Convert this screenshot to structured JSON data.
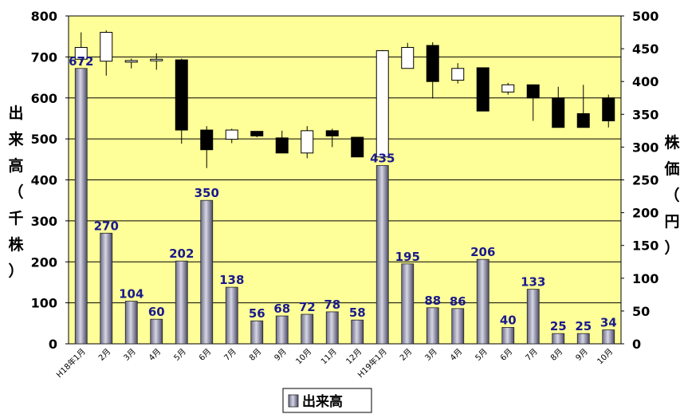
{
  "chart_data": {
    "type": "bar",
    "categories": [
      "H18年1月",
      "2月",
      "3月",
      "4月",
      "5月",
      "6月",
      "7月",
      "8月",
      "9月",
      "10月",
      "11月",
      "12月",
      "H19年1月",
      "2月",
      "3月",
      "4月",
      "5月",
      "6月",
      "7月",
      "8月",
      "9月",
      "10月"
    ],
    "series": [
      {
        "name": "出来高",
        "axis": "left",
        "type": "bar",
        "values": [
          672,
          270,
          104,
          60,
          202,
          350,
          138,
          56,
          68,
          72,
          78,
          58,
          435,
          195,
          88,
          86,
          206,
          40,
          133,
          25,
          25,
          34
        ],
        "data_labels": [
          "672",
          "270",
          "104",
          "60",
          "202",
          "350",
          "138",
          "56",
          "68",
          "72",
          "78",
          "58",
          "435",
          "195",
          "88",
          "86",
          "206",
          "40",
          "133",
          "25",
          "25",
          "34"
        ]
      },
      {
        "axis": "right",
        "type": "candlestick",
        "ohlc": [
          {
            "open": 434,
            "high": 475,
            "low": 424,
            "close": 452
          },
          {
            "open": 431,
            "high": 478,
            "low": 409,
            "close": 475
          },
          {
            "open": 430,
            "high": 435,
            "low": 420,
            "close": 432
          },
          {
            "open": 434,
            "high": 443,
            "low": 418,
            "close": 434
          },
          {
            "open": 433,
            "high": 435,
            "low": 305,
            "close": 326
          },
          {
            "open": 326,
            "high": 332,
            "low": 268,
            "close": 296
          },
          {
            "open": 312,
            "high": 328,
            "low": 306,
            "close": 326
          },
          {
            "open": 324,
            "high": 324,
            "low": 315,
            "close": 317
          },
          {
            "open": 314,
            "high": 325,
            "low": 291,
            "close": 291
          },
          {
            "open": 291,
            "high": 332,
            "low": 283,
            "close": 325
          },
          {
            "open": 325,
            "high": 328,
            "low": 300,
            "close": 317
          },
          {
            "open": 315,
            "high": 315,
            "low": 285,
            "close": 285
          },
          {
            "open": 285,
            "high": 448,
            "low": 285,
            "close": 447
          },
          {
            "open": 420,
            "high": 459,
            "low": 420,
            "close": 452
          },
          {
            "open": 455,
            "high": 460,
            "low": 374,
            "close": 400
          },
          {
            "open": 402,
            "high": 428,
            "low": 397,
            "close": 420
          },
          {
            "open": 421,
            "high": 421,
            "low": 355,
            "close": 355
          },
          {
            "open": 384,
            "high": 398,
            "low": 380,
            "close": 395
          },
          {
            "open": 395,
            "high": 395,
            "low": 340,
            "close": 375
          },
          {
            "open": 375,
            "high": 392,
            "low": 330,
            "close": 330
          },
          {
            "open": 351,
            "high": 395,
            "low": 330,
            "close": 330
          },
          {
            "open": 375,
            "high": 380,
            "low": 330,
            "close": 340
          }
        ]
      }
    ],
    "ylabel_left": "出来高（千株）",
    "ylabel_right": "株価（円）",
    "ylim_left": [
      0,
      800
    ],
    "ylim_right": [
      0,
      500
    ],
    "yticks_left": [
      "0",
      "100",
      "200",
      "300",
      "400",
      "500",
      "600",
      "700",
      "800"
    ],
    "yticks_right": [
      "0",
      "50",
      "100",
      "150",
      "200",
      "250",
      "300",
      "350",
      "400",
      "450",
      "500"
    ],
    "grid": true,
    "legend": {
      "position": "bottom",
      "entries": [
        "出来高"
      ]
    },
    "colors": {
      "plot_bg": "#ffff99",
      "bar_light": "#c8c8d8",
      "bar_dark": "#4a4a68",
      "label": "#1a1a8c",
      "candle_up": "#ffffff",
      "candle_down": "#000000"
    }
  }
}
